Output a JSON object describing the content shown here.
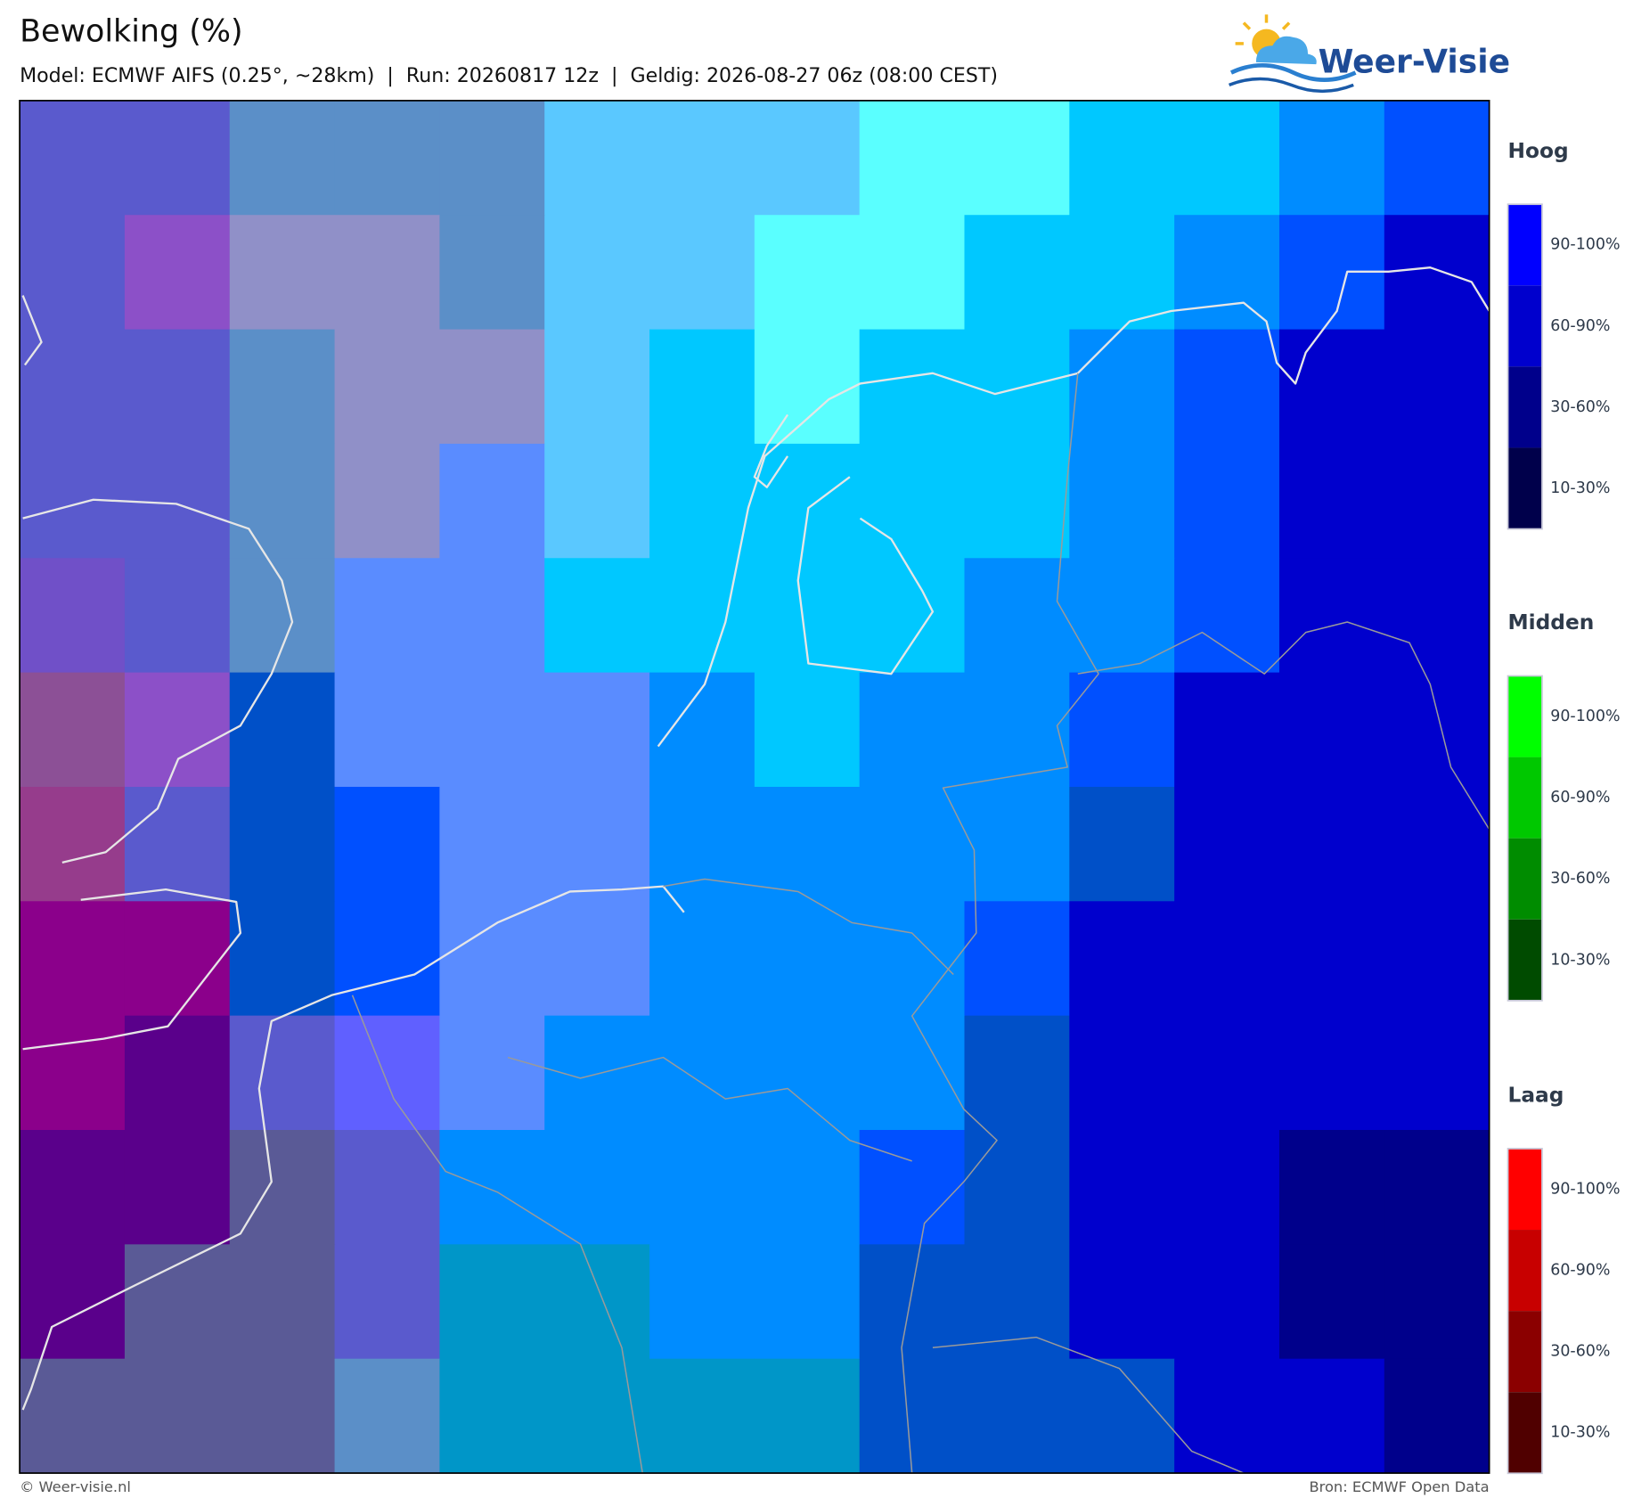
{
  "header": {
    "title": "Bewolking (%)",
    "subtitle": "Model: ECMWF AIFS (0.25°, ~28km)  |  Run: 20260817 12z  |  Geldig: 2026-08-27 06z (08:00 CEST)",
    "logo": "Weer-Visie"
  },
  "legend": [
    {
      "title": "Hoog",
      "items": [
        {
          "label": "90-100%",
          "color": "#0000ff"
        },
        {
          "label": "60-90%",
          "color": "#0000cd"
        },
        {
          "label": "30-60%",
          "color": "#00008b"
        },
        {
          "label": "10-30%",
          "color": "#00004b"
        }
      ]
    },
    {
      "title": "Midden",
      "items": [
        {
          "label": "90-100%",
          "color": "#00ff00"
        },
        {
          "label": "60-90%",
          "color": "#00c800"
        },
        {
          "label": "30-60%",
          "color": "#008c00"
        },
        {
          "label": "10-30%",
          "color": "#004b00"
        }
      ]
    },
    {
      "title": "Laag",
      "items": [
        {
          "label": "90-100%",
          "color": "#ff0000"
        },
        {
          "label": "60-90%",
          "color": "#c80000"
        },
        {
          "label": "30-60%",
          "color": "#8b0000"
        },
        {
          "label": "10-30%",
          "color": "#500000"
        }
      ]
    }
  ],
  "footer": {
    "left": "© Weer-visie.nl",
    "right": "Bron: ECMWF Open Data"
  }
}
